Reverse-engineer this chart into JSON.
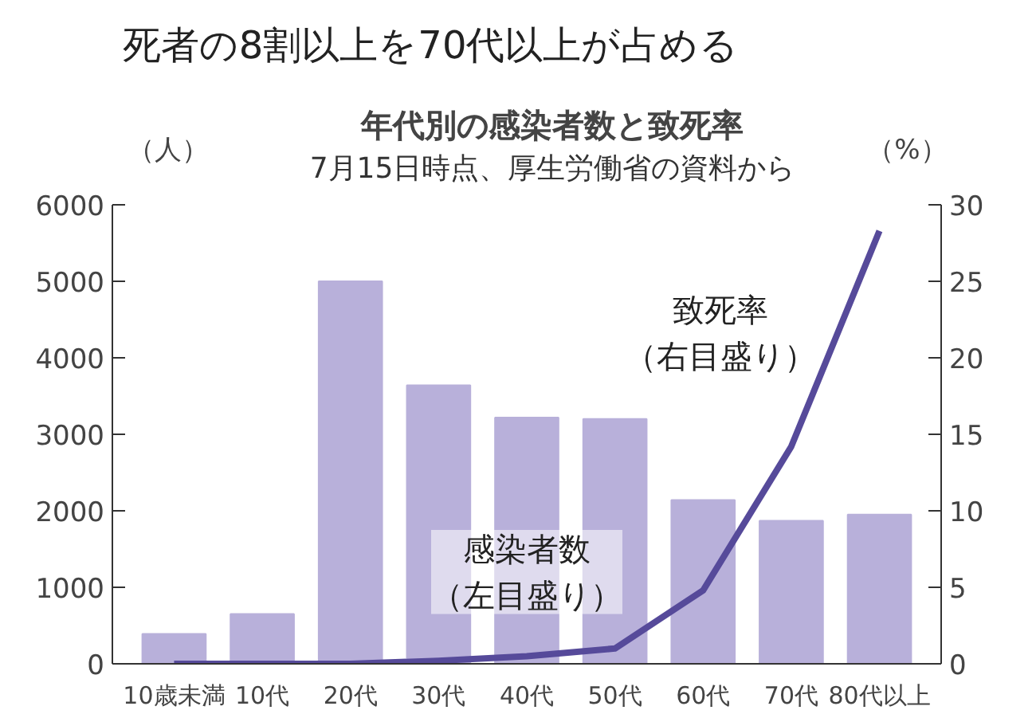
{
  "chart_data": {
    "type": "bar",
    "title": "年代別の感染者数と致死率",
    "subtitle": "7月15日時点、厚生労働省の資料から",
    "ylabel": "（人）",
    "y2label": "（%）",
    "annotations": [
      "死者の8割以上を70代以上が占める"
    ],
    "categories": [
      "10歳未満",
      "10代",
      "20代",
      "30代",
      "40代",
      "50代",
      "60代",
      "70代",
      "80代以上"
    ],
    "series": [
      {
        "name": "感染者数（左目盛り）",
        "color": "#b8b0da",
        "values": [
          390,
          650,
          5000,
          3640,
          3220,
          3200,
          2140,
          1870,
          1950
        ]
      },
      {
        "name": "致死率（右目盛り）",
        "type": "line",
        "axis": "y2",
        "color": "#564a9a",
        "values": [
          0,
          0,
          0,
          0.2,
          0.5,
          1.0,
          4.8,
          14.2,
          28.3
        ]
      }
    ],
    "ylim": [
      0,
      6000
    ],
    "yticks": [
      0,
      1000,
      2000,
      3000,
      4000,
      5000,
      6000
    ],
    "y2lim": [
      0,
      30
    ],
    "y2ticks": [
      0,
      5,
      10,
      15,
      20,
      25,
      30
    ],
    "grid": false,
    "legend": false
  }
}
